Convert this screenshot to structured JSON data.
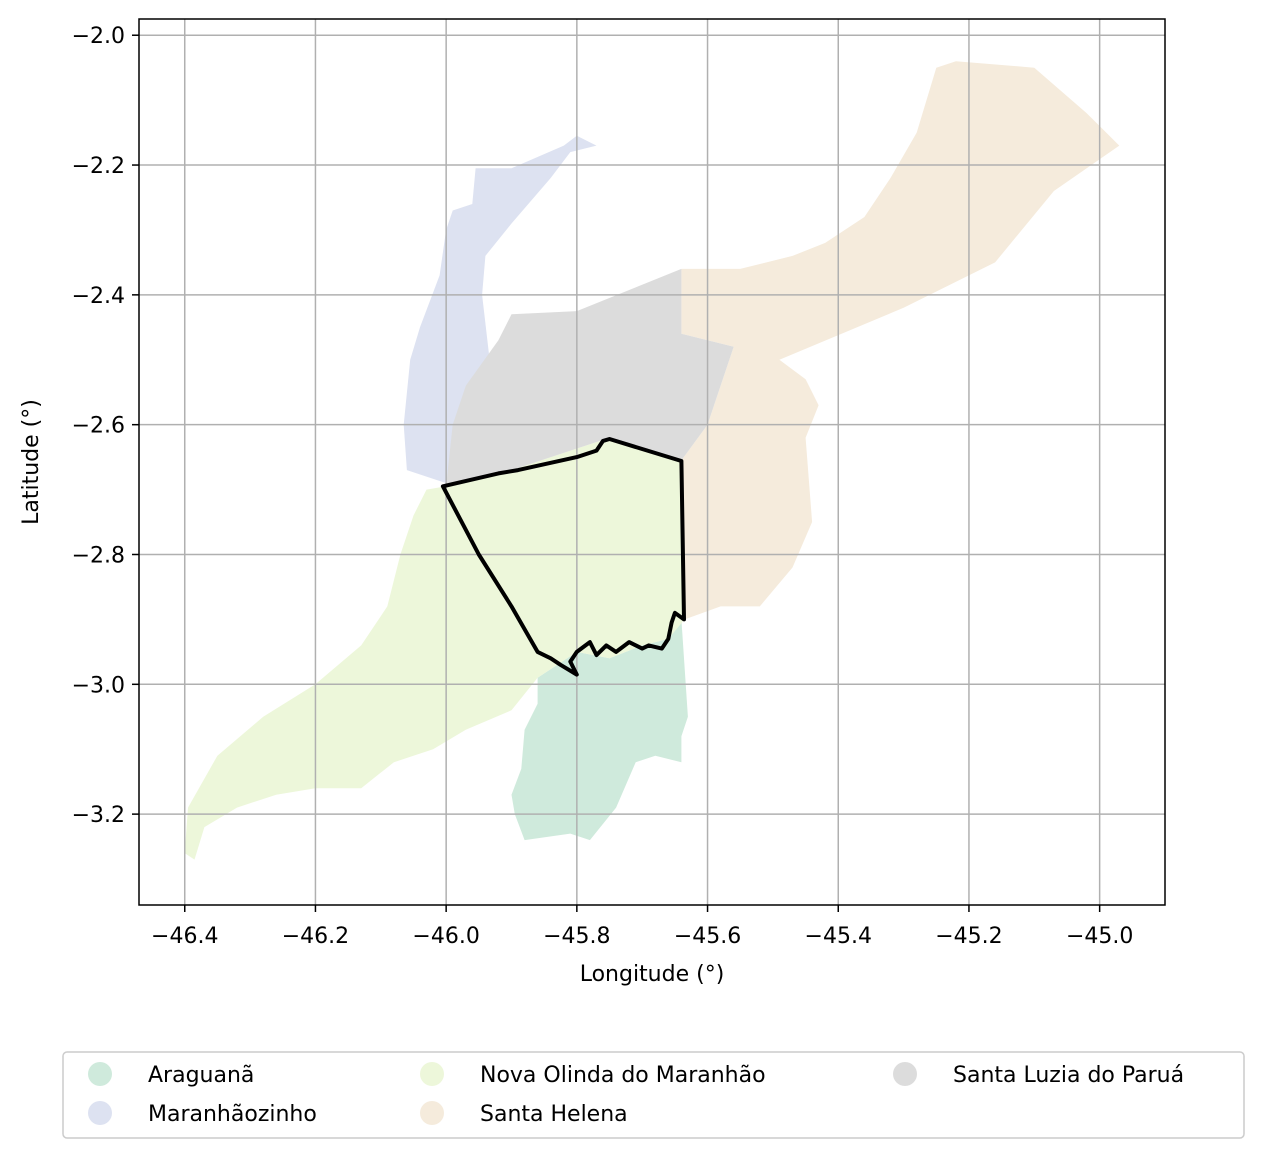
{
  "chart_data": {
    "type": "map",
    "xlabel": "Longitude (°)",
    "ylabel": "Latitude (°)",
    "xlim": [
      -46.47,
      -44.9
    ],
    "ylim": [
      -3.34,
      -1.975
    ],
    "grid": true,
    "legend_placement": "bottom-center",
    "xticks": [
      -46.4,
      -46.2,
      -46.0,
      -45.8,
      -45.6,
      -45.4,
      -45.2,
      -45.0
    ],
    "yticks": [
      -2.0,
      -2.2,
      -2.4,
      -2.6,
      -2.8,
      -3.0,
      -3.2
    ],
    "xtick_labels": [
      "−46.4",
      "−46.2",
      "−46.0",
      "−45.8",
      "−45.6",
      "−45.4",
      "−45.2",
      "−45.0"
    ],
    "ytick_labels": [
      "−2.0",
      "−2.2",
      "−2.4",
      "−2.6",
      "−2.8",
      "−3.0",
      "−3.2"
    ],
    "regions": [
      {
        "name": "Araguanã",
        "color": "#cfeadc",
        "coords": [
          [
            -45.86,
            -2.99
          ],
          [
            -45.8,
            -2.95
          ],
          [
            -45.75,
            -2.96
          ],
          [
            -45.7,
            -2.94
          ],
          [
            -45.66,
            -2.93
          ],
          [
            -45.64,
            -2.9
          ],
          [
            -45.63,
            -3.05
          ],
          [
            -45.64,
            -3.08
          ],
          [
            -45.64,
            -3.12
          ],
          [
            -45.68,
            -3.11
          ],
          [
            -45.71,
            -3.12
          ],
          [
            -45.74,
            -3.19
          ],
          [
            -45.78,
            -3.24
          ],
          [
            -45.81,
            -3.23
          ],
          [
            -45.88,
            -3.24
          ],
          [
            -45.895,
            -3.2
          ],
          [
            -45.9,
            -3.17
          ],
          [
            -45.885,
            -3.13
          ],
          [
            -45.88,
            -3.07
          ],
          [
            -45.86,
            -3.03
          ]
        ]
      },
      {
        "name": "Maranhãozinho",
        "color": "#dde2f1",
        "coords": [
          [
            -45.955,
            -2.205
          ],
          [
            -45.9,
            -2.205
          ],
          [
            -45.82,
            -2.17
          ],
          [
            -45.8,
            -2.155
          ],
          [
            -45.77,
            -2.17
          ],
          [
            -45.81,
            -2.18
          ],
          [
            -45.84,
            -2.22
          ],
          [
            -45.9,
            -2.29
          ],
          [
            -45.94,
            -2.34
          ],
          [
            -45.945,
            -2.4
          ],
          [
            -45.93,
            -2.53
          ],
          [
            -45.95,
            -2.64
          ],
          [
            -45.98,
            -2.68
          ],
          [
            -46.0,
            -2.69
          ],
          [
            -46.06,
            -2.67
          ],
          [
            -46.065,
            -2.6
          ],
          [
            -46.055,
            -2.5
          ],
          [
            -46.04,
            -2.45
          ],
          [
            -46.01,
            -2.37
          ],
          [
            -46.0,
            -2.3
          ],
          [
            -45.99,
            -2.27
          ],
          [
            -45.96,
            -2.26
          ]
        ]
      },
      {
        "name": "Nova Olinda do Maranhão",
        "color": "#edf7da",
        "coords": [
          [
            -46.0,
            -2.695
          ],
          [
            -45.9,
            -2.67
          ],
          [
            -45.75,
            -2.62
          ],
          [
            -45.64,
            -2.655
          ],
          [
            -45.635,
            -2.9
          ],
          [
            -45.66,
            -2.93
          ],
          [
            -45.7,
            -2.94
          ],
          [
            -45.75,
            -2.96
          ],
          [
            -45.8,
            -2.95
          ],
          [
            -45.86,
            -2.99
          ],
          [
            -45.9,
            -3.04
          ],
          [
            -45.97,
            -3.07
          ],
          [
            -46.02,
            -3.1
          ],
          [
            -46.08,
            -3.12
          ],
          [
            -46.13,
            -3.16
          ],
          [
            -46.2,
            -3.16
          ],
          [
            -46.26,
            -3.17
          ],
          [
            -46.32,
            -3.19
          ],
          [
            -46.37,
            -3.22
          ],
          [
            -46.385,
            -3.27
          ],
          [
            -46.4,
            -3.26
          ],
          [
            -46.395,
            -3.19
          ],
          [
            -46.35,
            -3.11
          ],
          [
            -46.28,
            -3.05
          ],
          [
            -46.2,
            -3.0
          ],
          [
            -46.13,
            -2.94
          ],
          [
            -46.09,
            -2.88
          ],
          [
            -46.07,
            -2.8
          ],
          [
            -46.05,
            -2.74
          ],
          [
            -46.03,
            -2.7
          ]
        ]
      },
      {
        "name": "Santa Helena",
        "color": "#f5ebdc",
        "coords": [
          [
            -45.64,
            -2.36
          ],
          [
            -45.64,
            -2.46
          ],
          [
            -45.56,
            -2.48
          ],
          [
            -45.6,
            -2.6
          ],
          [
            -45.64,
            -2.655
          ],
          [
            -45.635,
            -2.9
          ],
          [
            -45.58,
            -2.88
          ],
          [
            -45.52,
            -2.88
          ],
          [
            -45.47,
            -2.82
          ],
          [
            -45.44,
            -2.75
          ],
          [
            -45.45,
            -2.62
          ],
          [
            -45.43,
            -2.57
          ],
          [
            -45.45,
            -2.53
          ],
          [
            -45.49,
            -2.5
          ],
          [
            -45.3,
            -2.42
          ],
          [
            -45.16,
            -2.35
          ],
          [
            -45.07,
            -2.24
          ],
          [
            -44.97,
            -2.17
          ],
          [
            -45.02,
            -2.12
          ],
          [
            -45.1,
            -2.05
          ],
          [
            -45.22,
            -2.04
          ],
          [
            -45.25,
            -2.05
          ],
          [
            -45.28,
            -2.15
          ],
          [
            -45.32,
            -2.22
          ],
          [
            -45.36,
            -2.28
          ],
          [
            -45.42,
            -2.32
          ],
          [
            -45.47,
            -2.34
          ],
          [
            -45.55,
            -2.36
          ]
        ]
      },
      {
        "name": "Santa Luzia do Paruá",
        "color": "#dcdcdc",
        "coords": [
          [
            -45.64,
            -2.36
          ],
          [
            -45.8,
            -2.425
          ],
          [
            -45.9,
            -2.43
          ],
          [
            -45.92,
            -2.47
          ],
          [
            -45.97,
            -2.54
          ],
          [
            -45.99,
            -2.6
          ],
          [
            -46.0,
            -2.695
          ],
          [
            -45.9,
            -2.67
          ],
          [
            -45.75,
            -2.62
          ],
          [
            -45.64,
            -2.655
          ],
          [
            -45.6,
            -2.6
          ],
          [
            -45.56,
            -2.48
          ],
          [
            -45.64,
            -2.46
          ]
        ]
      }
    ],
    "highlight": {
      "name": "Nova Olinda do Maranhão",
      "stroke": "#000000",
      "coords": [
        [
          -46.005,
          -2.695
        ],
        [
          -45.92,
          -2.675
        ],
        [
          -45.89,
          -2.67
        ],
        [
          -45.8,
          -2.65
        ],
        [
          -45.77,
          -2.64
        ],
        [
          -45.76,
          -2.625
        ],
        [
          -45.75,
          -2.622
        ],
        [
          -45.64,
          -2.656
        ],
        [
          -45.636,
          -2.9
        ],
        [
          -45.65,
          -2.89
        ],
        [
          -45.655,
          -2.905
        ],
        [
          -45.66,
          -2.93
        ],
        [
          -45.67,
          -2.945
        ],
        [
          -45.69,
          -2.94
        ],
        [
          -45.7,
          -2.945
        ],
        [
          -45.72,
          -2.935
        ],
        [
          -45.74,
          -2.95
        ],
        [
          -45.755,
          -2.94
        ],
        [
          -45.77,
          -2.955
        ],
        [
          -45.78,
          -2.935
        ],
        [
          -45.8,
          -2.95
        ],
        [
          -45.81,
          -2.965
        ],
        [
          -45.8,
          -2.985
        ],
        [
          -45.825,
          -2.97
        ],
        [
          -45.84,
          -2.96
        ],
        [
          -45.86,
          -2.95
        ],
        [
          -45.9,
          -2.88
        ],
        [
          -45.95,
          -2.8
        ],
        [
          -46.005,
          -2.695
        ]
      ]
    },
    "legend": [
      {
        "name": "Araguanã",
        "color": "#cfeadc"
      },
      {
        "name": "Maranhãozinho",
        "color": "#dde2f1"
      },
      {
        "name": "Nova Olinda do Maranhão",
        "color": "#edf7da"
      },
      {
        "name": "Santa Helena",
        "color": "#f5ebdc"
      },
      {
        "name": "Santa Luzia do Paruá",
        "color": "#dcdcdc"
      }
    ]
  }
}
